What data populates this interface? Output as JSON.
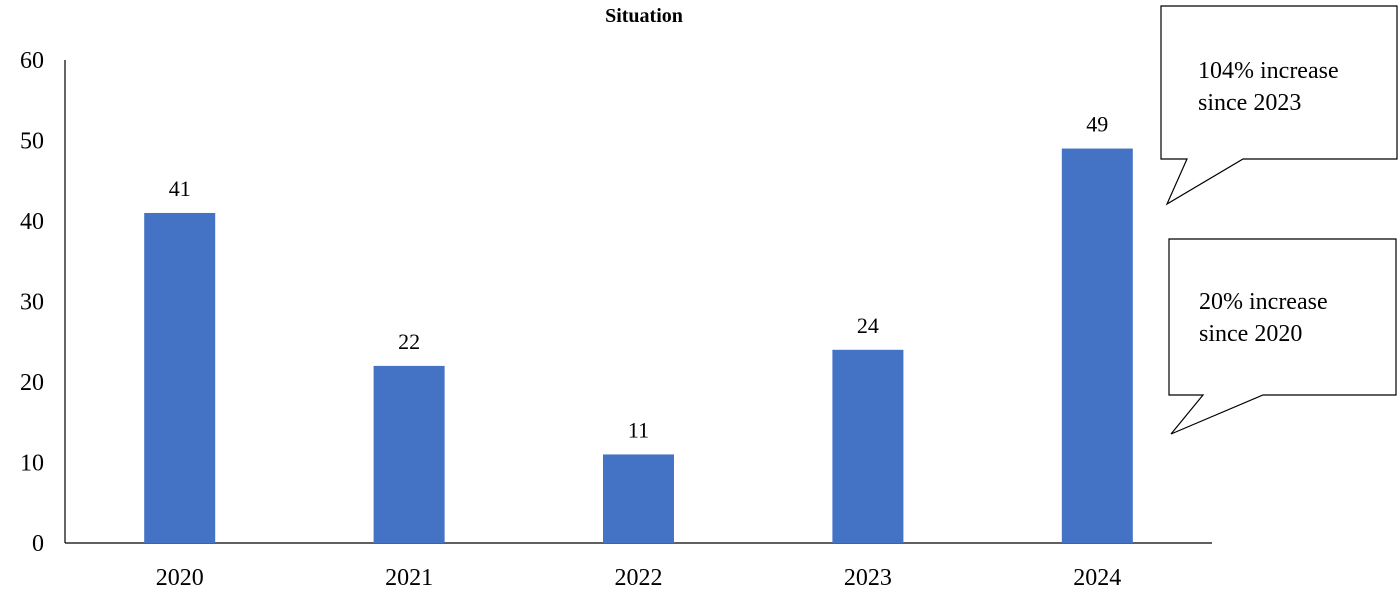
{
  "chart_data": {
    "type": "bar",
    "title": "Situation",
    "xlabel": "",
    "ylabel": "",
    "categories": [
      "2020",
      "2021",
      "2022",
      "2023",
      "2024"
    ],
    "values": [
      41,
      22,
      11,
      24,
      49
    ],
    "data_labels": [
      "41",
      "22",
      "11",
      "24",
      "49"
    ],
    "ylim": [
      0,
      60
    ],
    "yticks": [
      0,
      10,
      20,
      30,
      40,
      50,
      60
    ],
    "ytick_labels": [
      "0",
      "10",
      "20",
      "30",
      "40",
      "50",
      "60"
    ],
    "grid": false,
    "legend": "none",
    "annotations": [
      {
        "lines": [
          "104% increase",
          "since 2023"
        ]
      },
      {
        "lines": [
          "20% increase",
          "since 2020"
        ]
      }
    ]
  },
  "colors": {
    "bar": "#4472C4",
    "axis": "#000000",
    "text": "#000000",
    "callout_fill": "#ffffff",
    "callout_stroke": "#000000"
  }
}
